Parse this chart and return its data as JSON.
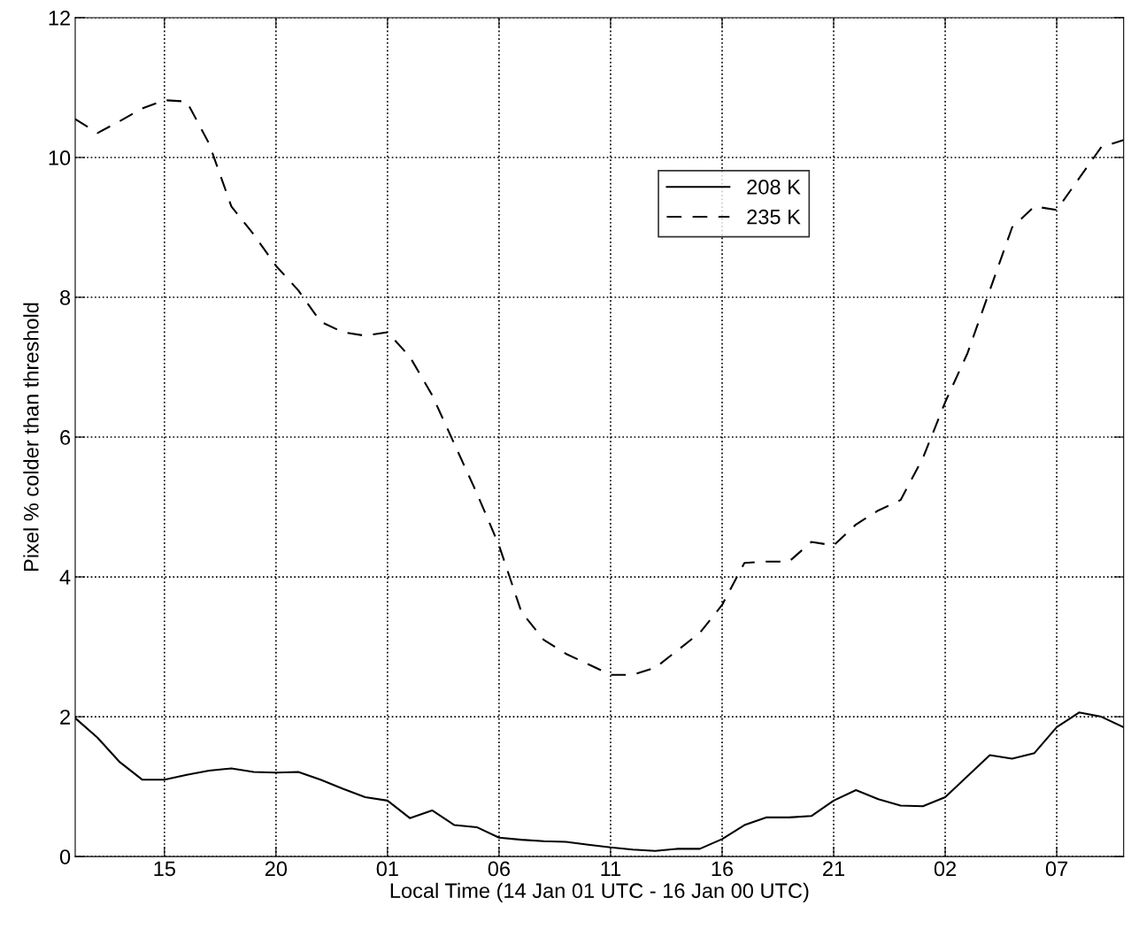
{
  "chart_data": {
    "type": "line",
    "xlabel": "Local Time (14 Jan 01 UTC - 16 Jan 00 UTC)",
    "ylabel": "Pixel % colder than threshold",
    "x": [
      "--01-14T11:00",
      "--01-14T12:00",
      "--01-14T13:00",
      "--01-14T14:00",
      "--01-14T15:00",
      "--01-14T16:00",
      "--01-14T17:00",
      "--01-14T18:00",
      "--01-14T19:00",
      "--01-14T20:00",
      "--01-14T21:00",
      "--01-14T22:00",
      "--01-14T23:00",
      "--01-15T00:00",
      "--01-15T01:00",
      "--01-15T02:00",
      "--01-15T03:00",
      "--01-15T04:00",
      "--01-15T05:00",
      "--01-15T06:00",
      "--01-15T07:00",
      "--01-15T08:00",
      "--01-15T09:00",
      "--01-15T10:00",
      "--01-15T11:00",
      "--01-15T12:00",
      "--01-15T13:00",
      "--01-15T14:00",
      "--01-15T15:00",
      "--01-15T16:00",
      "--01-15T17:00",
      "--01-15T18:00",
      "--01-15T19:00",
      "--01-15T20:00",
      "--01-15T21:00",
      "--01-15T22:00",
      "--01-15T23:00",
      "--01-16T00:00",
      "--01-16T01:00",
      "--01-16T02:00",
      "--01-16T03:00",
      "--01-16T04:00",
      "--01-16T05:00",
      "--01-16T06:00",
      "--01-16T07:00",
      "--01-16T08:00",
      "--01-16T09:00",
      "--01-16T10:00"
    ],
    "series": [
      {
        "name": "208 K",
        "color": "#000000",
        "line_style": "solid",
        "values": [
          1.98,
          1.7,
          1.35,
          1.1,
          1.1,
          1.17,
          1.23,
          1.26,
          1.21,
          1.2,
          1.21,
          1.1,
          0.97,
          0.85,
          0.8,
          0.55,
          0.66,
          0.45,
          0.42,
          0.27,
          0.24,
          0.22,
          0.21,
          0.17,
          0.13,
          0.1,
          0.08,
          0.11,
          0.11,
          0.25,
          0.45,
          0.56,
          0.56,
          0.58,
          0.8,
          0.95,
          0.82,
          0.73,
          0.72,
          0.85,
          1.15,
          1.45,
          1.4,
          1.48,
          1.85,
          2.06,
          2.0,
          1.85
        ]
      },
      {
        "name": "235 K",
        "color": "#000000",
        "line_style": "dashed",
        "values": [
          10.55,
          10.35,
          10.52,
          10.7,
          10.82,
          10.8,
          10.2,
          9.3,
          8.9,
          8.45,
          8.1,
          7.65,
          7.5,
          7.45,
          7.5,
          7.15,
          6.6,
          5.9,
          5.2,
          4.45,
          3.5,
          3.1,
          2.9,
          2.75,
          2.6,
          2.6,
          2.7,
          2.95,
          3.2,
          3.6,
          4.2,
          4.22,
          4.22,
          4.5,
          4.45,
          4.75,
          4.95,
          5.1,
          5.7,
          6.5,
          7.2,
          8.1,
          9.0,
          9.3,
          9.25,
          9.7,
          10.15,
          10.25
        ]
      }
    ],
    "xlim": [
      "--01-14T11:00",
      "--01-16T10:00"
    ],
    "xticks": [
      {
        "value": "--01-14T15:00",
        "label": "15"
      },
      {
        "value": "--01-14T20:00",
        "label": "20"
      },
      {
        "value": "--01-15T01:00",
        "label": "01"
      },
      {
        "value": "--01-15T06:00",
        "label": "06"
      },
      {
        "value": "--01-15T11:00",
        "label": "11"
      },
      {
        "value": "--01-15T16:00",
        "label": "16"
      },
      {
        "value": "--01-15T21:00",
        "label": "21"
      },
      {
        "value": "--01-16T02:00",
        "label": "02"
      },
      {
        "value": "--01-16T07:00",
        "label": "07"
      }
    ],
    "ylim": [
      0,
      12
    ],
    "yticks": [
      0,
      2,
      4,
      6,
      8,
      10,
      12
    ],
    "grid": true,
    "legend": "top right",
    "marker": "none"
  }
}
